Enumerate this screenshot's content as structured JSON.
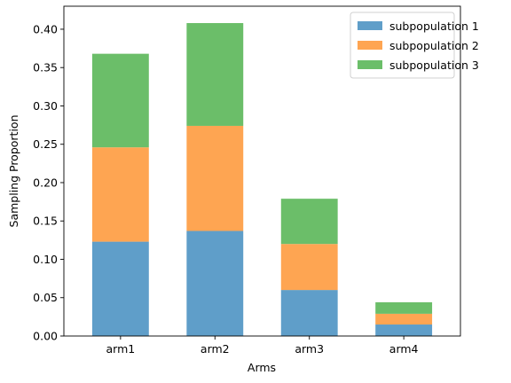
{
  "chart_data": {
    "type": "bar",
    "stacked": true,
    "title": "",
    "xlabel": "Arms",
    "ylabel": "Sampling Proportion",
    "categories": [
      "arm1",
      "arm2",
      "arm3",
      "arm4"
    ],
    "ylim": [
      0,
      0.43
    ],
    "yticks": [
      0.0,
      0.05,
      0.1,
      0.15,
      0.2,
      0.25,
      0.3,
      0.35,
      0.4
    ],
    "ytick_labels": [
      "0.00",
      "0.05",
      "0.10",
      "0.15",
      "0.20",
      "0.25",
      "0.30",
      "0.35",
      "0.40"
    ],
    "grid": false,
    "legend_position": "top-right",
    "series": [
      {
        "name": "subpopulation 1",
        "color": "#5f9ec9",
        "values": [
          0.123,
          0.137,
          0.06,
          0.015
        ]
      },
      {
        "name": "subpopulation 2",
        "color": "#fea552",
        "values": [
          0.123,
          0.137,
          0.06,
          0.014
        ]
      },
      {
        "name": "subpopulation 3",
        "color": "#6bbe69",
        "values": [
          0.122,
          0.134,
          0.059,
          0.015
        ]
      }
    ]
  }
}
